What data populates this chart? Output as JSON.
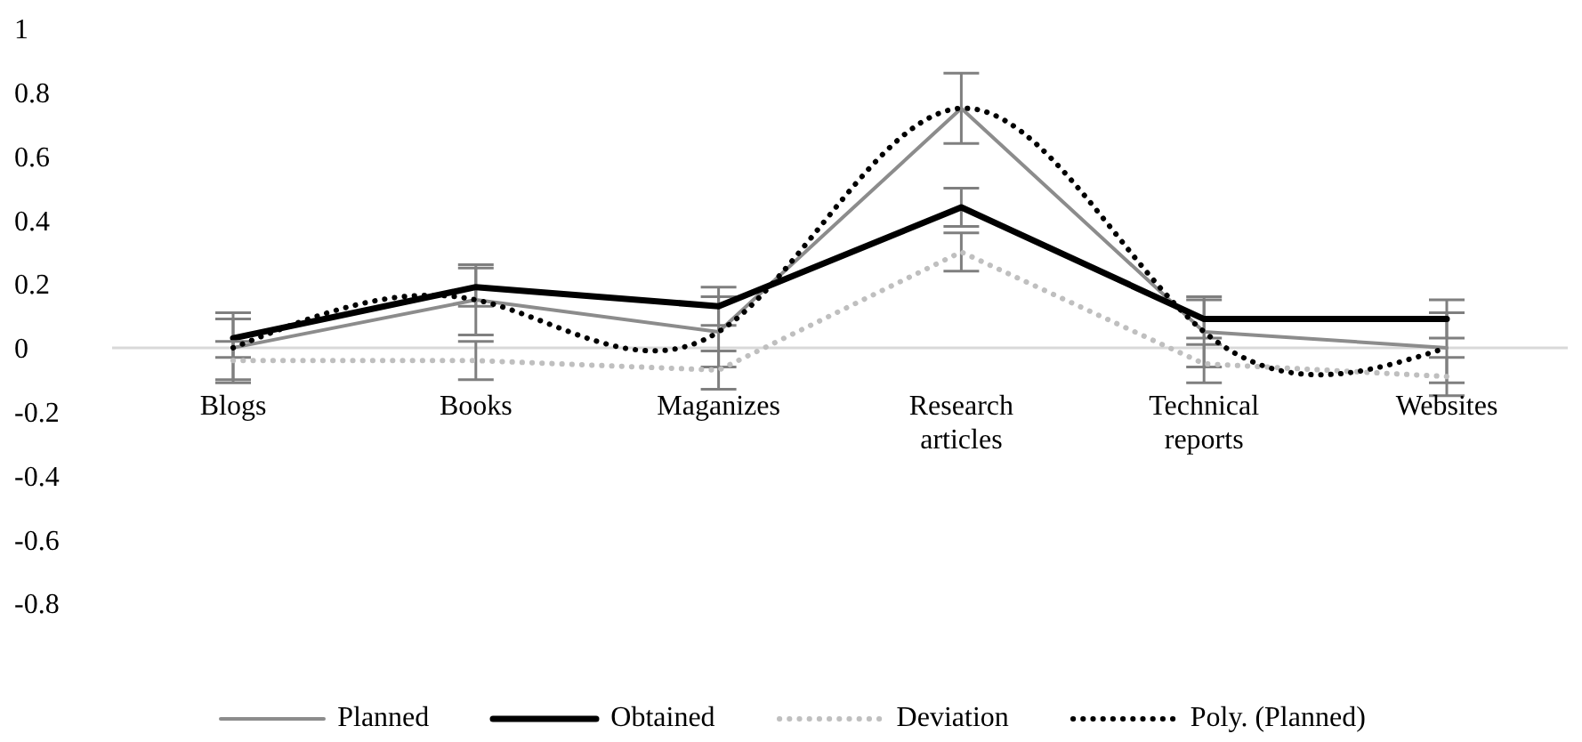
{
  "chart_data": {
    "type": "line",
    "categories": [
      "Blogs",
      "Books",
      "Maganizes",
      "Research articles",
      "Technical reports",
      "Websites"
    ],
    "series": [
      {
        "name": "Planned",
        "color": "#8c8c8c",
        "line_style": "solid",
        "values": [
          0,
          0.15,
          0.05,
          0.75,
          0.05,
          0
        ],
        "errors": [
          0.11,
          0.11,
          0.11,
          0.11,
          0.11,
          0.11
        ]
      },
      {
        "name": "Obtained",
        "color": "#000000",
        "line_style": "solid",
        "values": [
          0.03,
          0.19,
          0.13,
          0.44,
          0.09,
          0.09
        ],
        "errors": [
          0.06,
          0.06,
          0.06,
          0.06,
          0.06,
          0.06
        ]
      },
      {
        "name": "Deviation",
        "color": "#bfbfbf",
        "line_style": "dotted",
        "values": [
          -0.04,
          -0.04,
          -0.07,
          0.3,
          -0.05,
          -0.09
        ],
        "errors": [
          0.06,
          0.06,
          0.06,
          0.06,
          0.06,
          0.06
        ]
      },
      {
        "name": "Poly. (Planned)",
        "type": "line",
        "color": "#000000",
        "line_style": "dotted",
        "values": [
          0,
          0.15,
          0.05,
          0.75,
          0.05,
          0
        ]
      }
    ],
    "ylim": [
      -0.8,
      1
    ],
    "yticks": [
      -0.8,
      -0.6,
      -0.4,
      -0.2,
      0,
      0.2,
      0.4,
      0.6,
      0.8,
      1
    ],
    "grid": false,
    "legend": "bottom",
    "marker": "none"
  }
}
